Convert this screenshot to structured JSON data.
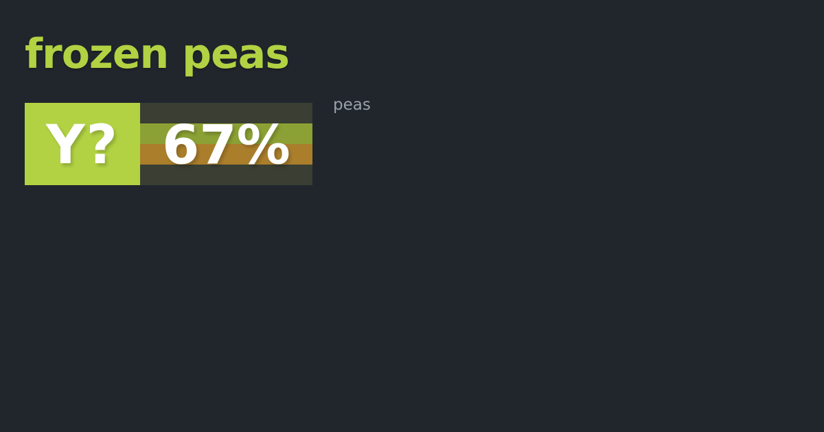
{
  "theme": {
    "bg": "#21262c",
    "lime": "#b2d243",
    "stripe-dark": "#3a3e33",
    "stripe-green": "#8ca135",
    "stripe-orange": "#aa7e2b",
    "text-white": "#ffffff",
    "label-gray": "#99a1aa"
  },
  "title": {
    "text": "frozen peas"
  },
  "poll": {
    "vote_label": "Y?",
    "percentage": "67%",
    "item_label": "peas"
  }
}
